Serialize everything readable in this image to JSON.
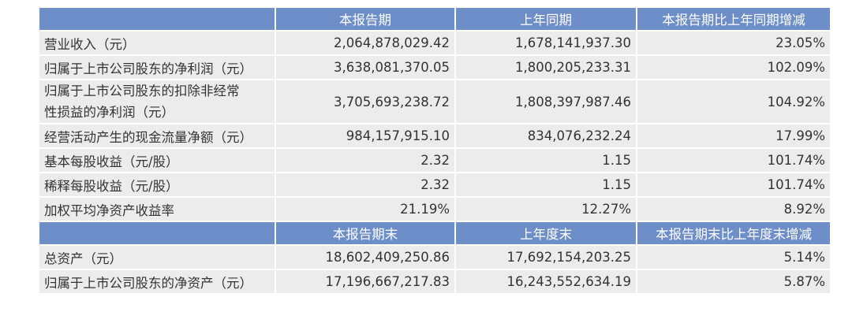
{
  "table": {
    "sections": [
      {
        "header": [
          "本报告期",
          "上年同期",
          "本报告期比上年同期增减"
        ],
        "rows": [
          [
            [
              "营业收入（元）"
            ],
            "2,064,878,029.42",
            "1,678,141,937.30",
            "23.05%"
          ],
          [
            [
              "归属于上市公司股东的净利润（元）"
            ],
            "3,638,081,370.05",
            "1,800,205,233.31",
            "102.09%"
          ],
          [
            [
              "归属于上市公司股东的扣除非经常",
              "性损益的净利润（元）"
            ],
            "3,705,693,238.72",
            "1,808,397,987.46",
            "104.92%"
          ],
          [
            [
              "经营活动产生的现金流量净额（元）"
            ],
            "984,157,915.10",
            "834,076,232.24",
            "17.99%"
          ],
          [
            [
              "基本每股收益（元/股）"
            ],
            "2.32",
            "1.15",
            "101.74%"
          ],
          [
            [
              "稀释每股收益（元/股）"
            ],
            "2.32",
            "1.15",
            "101.74%"
          ],
          [
            [
              "加权平均净资产收益率"
            ],
            "21.19%",
            "12.27%",
            "8.92%"
          ]
        ]
      },
      {
        "header": [
          "本报告期末",
          "上年度末",
          "本报告期末比上年度末增减"
        ],
        "rows": [
          [
            [
              "总资产（元）"
            ],
            "18,602,409,250.86",
            "17,692,154,203.25",
            "5.14%"
          ],
          [
            [
              "归属于上市公司股东的净资产（元）"
            ],
            "17,196,667,217.83",
            "16,243,552,634.19",
            "5.87%"
          ]
        ]
      }
    ]
  }
}
